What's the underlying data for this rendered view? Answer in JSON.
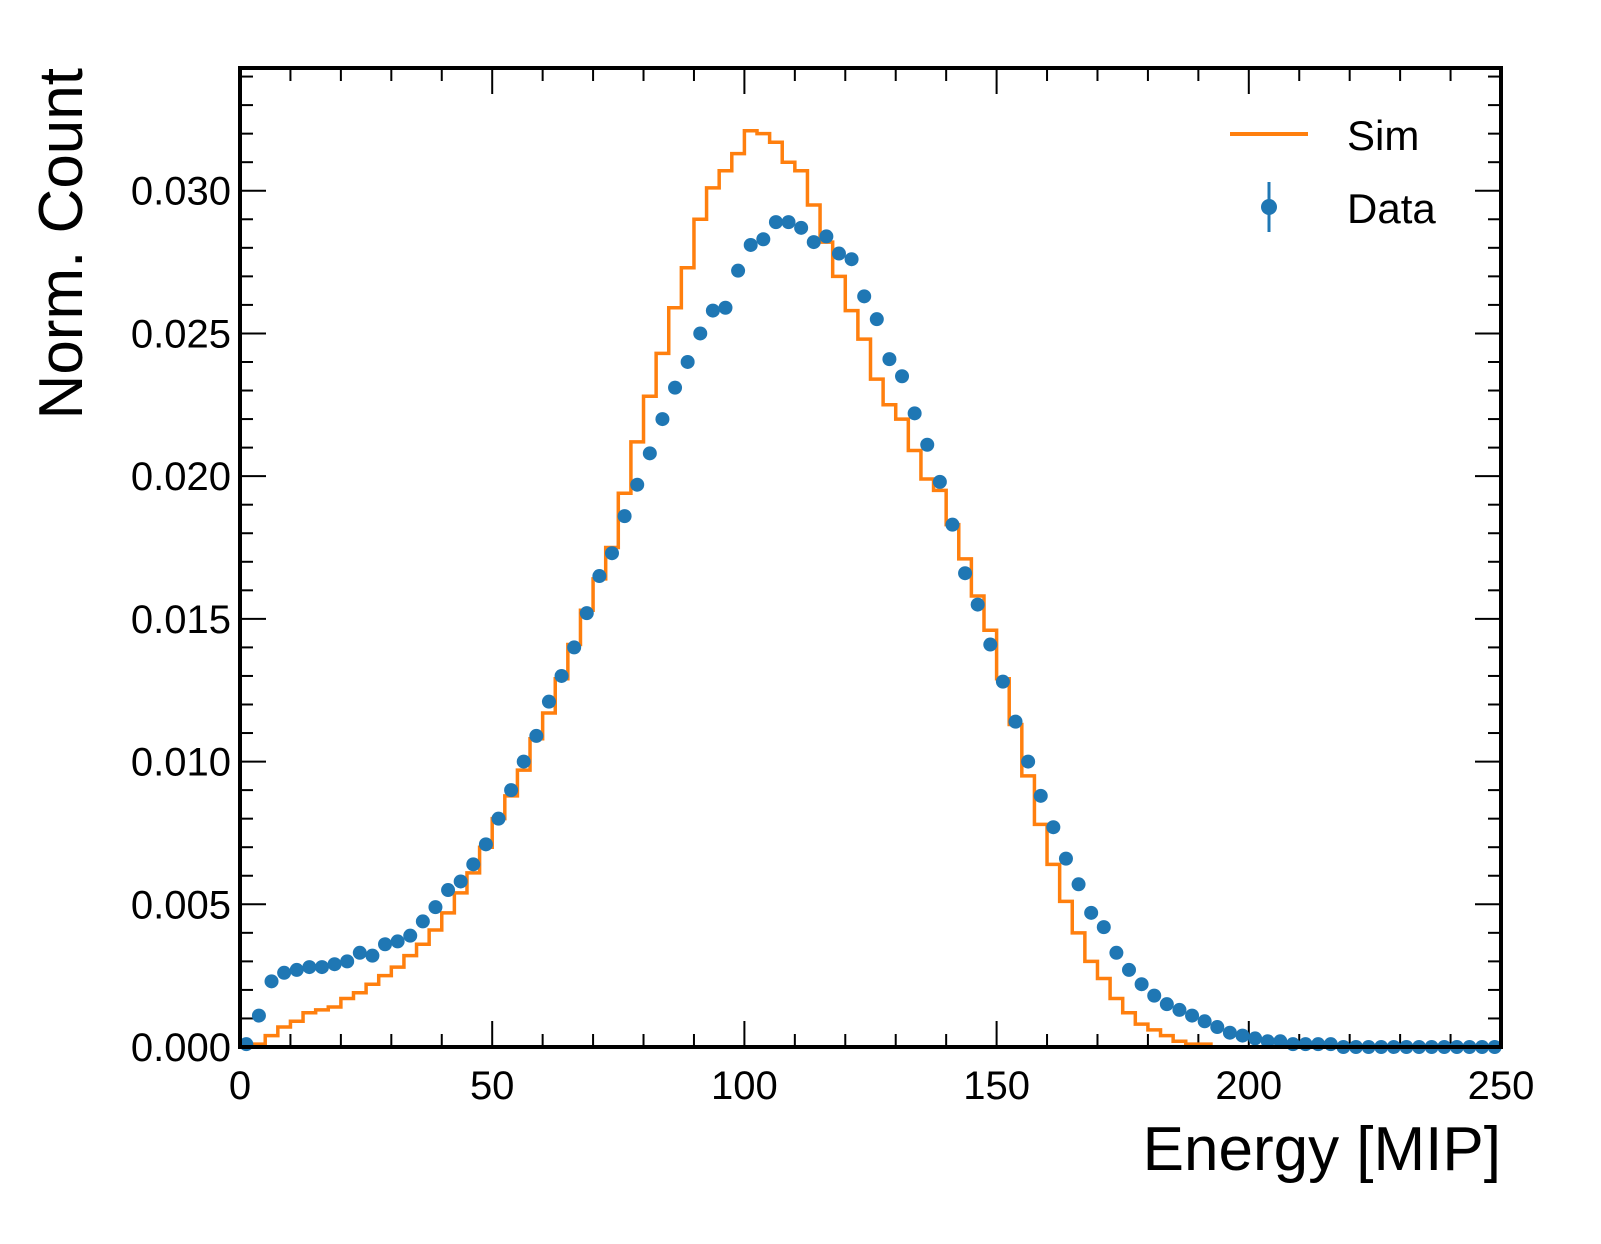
{
  "chart_data": {
    "type": "line",
    "title": "",
    "xlabel": "Energy [MIP]",
    "ylabel": "Norm. Count",
    "xlim": [
      0,
      250
    ],
    "ylim": [
      0,
      0.0343
    ],
    "xticks": [
      0,
      50,
      100,
      150,
      200,
      250
    ],
    "xtick_labels": [
      "0",
      "50",
      "100",
      "150",
      "200",
      "250"
    ],
    "yticks": [
      0,
      0.005,
      0.01,
      0.015,
      0.02,
      0.025,
      0.03
    ],
    "ytick_labels": [
      "0.000",
      "0.005",
      "0.010",
      "0.015",
      "0.020",
      "0.025",
      "0.030"
    ],
    "legend_position": "top-right",
    "bin_width": 2.5,
    "series": [
      {
        "name": "Sim",
        "style": "step",
        "color": "#ff7f0e",
        "values": [
          0.0,
          0.0001,
          0.0004,
          0.0007,
          0.0009,
          0.0012,
          0.0013,
          0.0014,
          0.0017,
          0.0019,
          0.0022,
          0.0025,
          0.0028,
          0.0032,
          0.0036,
          0.0041,
          0.0047,
          0.0054,
          0.0061,
          0.007,
          0.008,
          0.0088,
          0.0097,
          0.0108,
          0.0117,
          0.0129,
          0.0141,
          0.0153,
          0.0164,
          0.0175,
          0.0194,
          0.0212,
          0.0228,
          0.0243,
          0.0259,
          0.0273,
          0.029,
          0.0301,
          0.0307,
          0.0313,
          0.0321,
          0.032,
          0.0317,
          0.031,
          0.0307,
          0.0295,
          0.0282,
          0.027,
          0.0258,
          0.0248,
          0.0234,
          0.0225,
          0.022,
          0.0209,
          0.0199,
          0.0195,
          0.0183,
          0.0171,
          0.0158,
          0.0146,
          0.0129,
          0.0113,
          0.0095,
          0.0078,
          0.0064,
          0.0051,
          0.004,
          0.003,
          0.0024,
          0.0017,
          0.0012,
          0.0008,
          0.0006,
          0.0004,
          0.0002,
          0.0001,
          0.0001,
          0.0,
          0.0,
          0.0,
          0.0,
          0.0,
          0.0,
          0.0,
          0.0,
          0.0,
          0.0,
          0.0,
          0.0,
          0.0,
          0.0,
          0.0,
          0.0,
          0.0,
          0.0,
          0.0,
          0.0,
          0.0,
          0.0,
          0.0
        ]
      },
      {
        "name": "Data",
        "style": "errorbar-points",
        "color": "#1f77b4",
        "values": [
          0.0001,
          0.0011,
          0.0023,
          0.0026,
          0.0027,
          0.0028,
          0.0028,
          0.0029,
          0.003,
          0.0033,
          0.0032,
          0.0036,
          0.0037,
          0.0039,
          0.0044,
          0.0049,
          0.0055,
          0.0058,
          0.0064,
          0.0071,
          0.008,
          0.009,
          0.01,
          0.0109,
          0.0121,
          0.013,
          0.014,
          0.0152,
          0.0165,
          0.0173,
          0.0186,
          0.0197,
          0.0208,
          0.022,
          0.0231,
          0.024,
          0.025,
          0.0258,
          0.0259,
          0.0272,
          0.0281,
          0.0283,
          0.0289,
          0.0289,
          0.0287,
          0.0282,
          0.0284,
          0.0278,
          0.0276,
          0.0263,
          0.0255,
          0.0241,
          0.0235,
          0.0222,
          0.0211,
          0.0198,
          0.0183,
          0.0166,
          0.0155,
          0.0141,
          0.0128,
          0.0114,
          0.01,
          0.0088,
          0.0077,
          0.0066,
          0.0057,
          0.0047,
          0.0042,
          0.0033,
          0.0027,
          0.0022,
          0.0018,
          0.0015,
          0.0013,
          0.0011,
          0.0009,
          0.0007,
          0.0005,
          0.0004,
          0.0003,
          0.0002,
          0.0002,
          0.0001,
          0.0001,
          0.0001,
          0.0001,
          0.0,
          0.0,
          0.0,
          0.0,
          0.0,
          0.0,
          0.0,
          0.0,
          0.0,
          0.0,
          0.0,
          0.0,
          0.0
        ]
      }
    ]
  }
}
